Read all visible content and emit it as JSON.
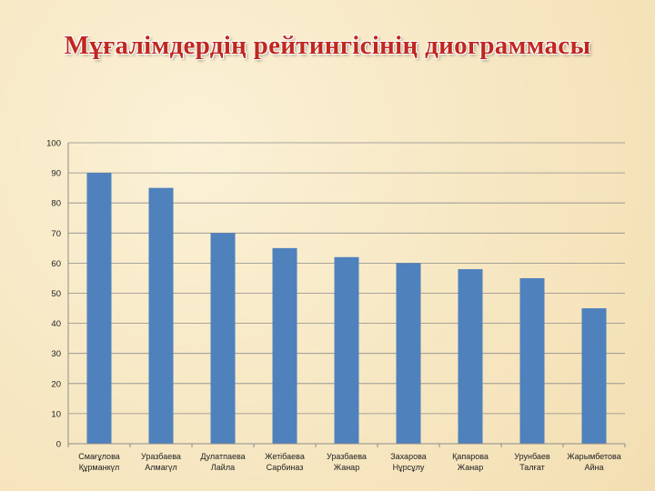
{
  "title": "Мұғалімдердің рейтингісінің диограммасы",
  "colors": {
    "bar": "#4f81bd",
    "grid": "#8c8c8c",
    "title": "#c0281f"
  },
  "chart_data": {
    "type": "bar",
    "categories": [
      [
        "Смағұлова",
        "Құрманкүл"
      ],
      [
        "Уразбаева",
        "Алмагүл"
      ],
      [
        "Дулатпаева",
        "Лайла"
      ],
      [
        "Жетібаева",
        "Сарбиназ"
      ],
      [
        "Уразбаева",
        "Жанар"
      ],
      [
        "Захарова",
        "Нұрсұлу"
      ],
      [
        "Қапарова",
        "Жанар"
      ],
      [
        "Урунбаев",
        "Талғат"
      ],
      [
        "Жарымбетова",
        "Айна"
      ]
    ],
    "values": [
      90,
      85,
      70,
      65,
      62,
      60,
      58,
      55,
      45
    ],
    "ylim": [
      0,
      100
    ],
    "yticks": [
      0,
      10,
      20,
      30,
      40,
      50,
      60,
      70,
      80,
      90,
      100
    ],
    "grid": true,
    "legend": "none"
  }
}
